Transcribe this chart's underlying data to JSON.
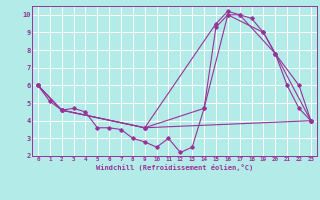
{
  "xlabel": "Windchill (Refroidissement éolien,°C)",
  "bg_color": "#b2ebe8",
  "line_color": "#993399",
  "grid_color": "#ffffff",
  "xlim": [
    -0.5,
    23.5
  ],
  "ylim": [
    2,
    10.5
  ],
  "xticks": [
    0,
    1,
    2,
    3,
    4,
    5,
    6,
    7,
    8,
    9,
    10,
    11,
    12,
    13,
    14,
    15,
    16,
    17,
    18,
    19,
    20,
    21,
    22,
    23
  ],
  "yticks": [
    2,
    3,
    4,
    5,
    6,
    7,
    8,
    9,
    10
  ],
  "line1_x": [
    0,
    1,
    2,
    3,
    4,
    5,
    6,
    7,
    8,
    9,
    10,
    11,
    12,
    13,
    14,
    15,
    16,
    17,
    18,
    19,
    20,
    21,
    22,
    23
  ],
  "line1_y": [
    6.0,
    5.1,
    4.6,
    4.7,
    4.5,
    3.6,
    3.6,
    3.5,
    3.0,
    2.8,
    2.5,
    3.0,
    2.2,
    2.5,
    4.7,
    9.3,
    10.0,
    10.0,
    9.8,
    9.0,
    7.8,
    6.0,
    4.7,
    4.0
  ],
  "line2_x": [
    0,
    2,
    9,
    14,
    16,
    19,
    20,
    22,
    23
  ],
  "line2_y": [
    6.0,
    4.6,
    3.6,
    4.7,
    10.0,
    9.0,
    7.8,
    6.0,
    4.0
  ],
  "line3_x": [
    0,
    2,
    9,
    15,
    16,
    17,
    20,
    23
  ],
  "line3_y": [
    6.0,
    4.6,
    3.6,
    9.5,
    10.2,
    10.0,
    7.8,
    4.0
  ],
  "line4_x": [
    0,
    2,
    9,
    23
  ],
  "line4_y": [
    6.0,
    4.6,
    3.6,
    4.0
  ]
}
